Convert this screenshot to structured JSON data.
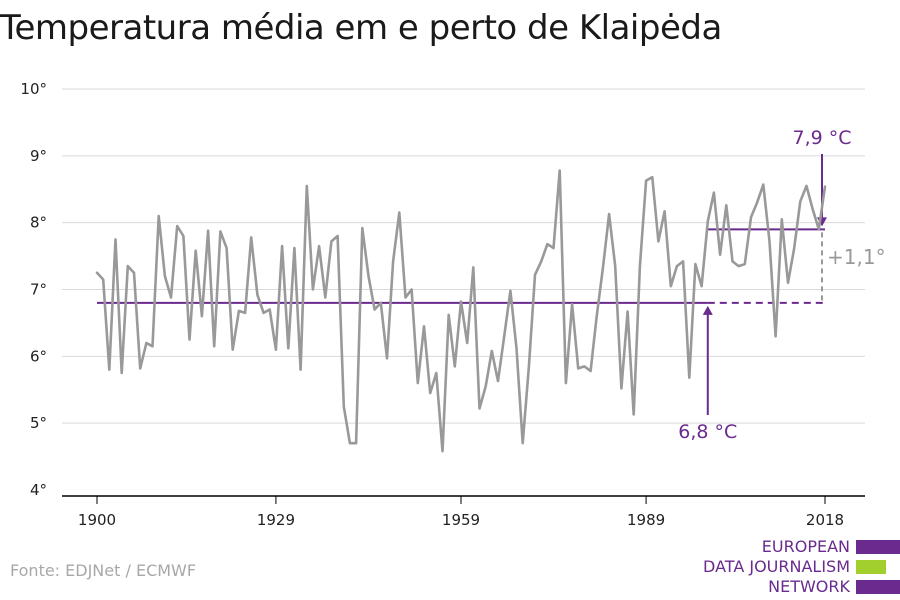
{
  "title": "Temperatura média em e perto de Klaipėda",
  "source": "Fonte: EDJNet / ECMWF",
  "logo": {
    "lines": [
      "EUROPEAN",
      "DATA JOURNALISM",
      "NETWORK"
    ],
    "bar_colors": [
      "#6a2a8e",
      "#a3cf2e",
      "#6a2a8e"
    ]
  },
  "colors": {
    "series": "#999999",
    "accent": "#6a2a8e",
    "gridline": "#d9d9d9",
    "axis": "#000000",
    "diff_label": "#999999"
  },
  "chart_data": {
    "type": "line",
    "title": "Temperatura média em e perto de Klaipėda",
    "xlabel": "",
    "ylabel": "",
    "xlim": [
      1900,
      2018
    ],
    "ylim": [
      4,
      10
    ],
    "y_ticks": [
      4,
      5,
      6,
      7,
      8,
      9,
      10
    ],
    "y_tick_labels": [
      "4°",
      "5°",
      "6°",
      "7°",
      "8°",
      "9°",
      "10°"
    ],
    "x_ticks": [
      1900,
      1929,
      1959,
      1989,
      2018
    ],
    "x_tick_labels": [
      "1900",
      "1929",
      "1959",
      "1989",
      "2018"
    ],
    "grid": true,
    "series": [
      {
        "x": [
          1900,
          1901,
          1902,
          1903,
          1904,
          1905,
          1906,
          1907,
          1908,
          1909,
          1910,
          1911,
          1912,
          1913,
          1914,
          1915,
          1916,
          1917,
          1918,
          1919,
          1920,
          1921,
          1922,
          1923,
          1924,
          1925,
          1926,
          1927,
          1928,
          1929,
          1930,
          1931,
          1932,
          1933,
          1934,
          1935,
          1936,
          1937,
          1938,
          1939,
          1940,
          1941,
          1942,
          1943,
          1944,
          1945,
          1946,
          1947,
          1948,
          1949,
          1950,
          1951,
          1952,
          1953,
          1954,
          1955,
          1956,
          1957,
          1958,
          1959,
          1960,
          1961,
          1962,
          1963,
          1964,
          1965,
          1966,
          1967,
          1968,
          1969,
          1970,
          1971,
          1972,
          1973,
          1974,
          1975,
          1976,
          1977,
          1978,
          1979,
          1980,
          1981,
          1982,
          1983,
          1984,
          1985,
          1986,
          1987,
          1988,
          1989,
          1990,
          1991,
          1992,
          1993,
          1994,
          1995,
          1996,
          1997,
          1998,
          1999,
          2000,
          2001,
          2002,
          2003,
          2004,
          2005,
          2006,
          2007,
          2008,
          2009,
          2010,
          2011,
          2012,
          2013,
          2014,
          2015,
          2016,
          2017,
          2018
        ],
        "values": [
          7.25,
          7.15,
          5.8,
          7.75,
          5.75,
          7.35,
          7.25,
          5.82,
          6.2,
          6.15,
          8.1,
          7.2,
          6.88,
          7.95,
          7.8,
          6.25,
          7.58,
          6.6,
          7.88,
          6.15,
          7.87,
          7.62,
          6.1,
          6.68,
          6.65,
          7.78,
          6.92,
          6.65,
          6.7,
          6.1,
          7.65,
          6.12,
          7.62,
          5.8,
          8.55,
          7.0,
          7.65,
          6.88,
          7.72,
          7.8,
          5.25,
          4.7,
          4.7,
          7.92,
          7.2,
          6.7,
          6.8,
          5.97,
          7.42,
          8.15,
          6.88,
          7.0,
          5.6,
          6.45,
          5.45,
          5.75,
          4.58,
          6.62,
          5.85,
          6.82,
          6.2,
          7.33,
          5.22,
          5.55,
          6.08,
          5.63,
          6.3,
          6.98,
          6.12,
          4.7,
          5.85,
          7.22,
          7.42,
          7.68,
          7.62,
          8.78,
          5.6,
          6.78,
          5.82,
          5.85,
          5.78,
          6.6,
          7.32,
          8.13,
          7.35,
          5.52,
          6.67,
          5.13,
          7.35,
          8.63,
          8.68,
          7.72,
          8.17,
          7.05,
          7.35,
          7.42,
          5.68,
          7.38,
          7.05,
          8.02,
          8.45,
          7.52,
          8.26,
          7.42,
          7.35,
          7.38,
          8.08,
          8.3,
          8.57,
          7.72,
          6.3,
          8.05,
          7.1,
          7.62,
          8.32,
          8.55,
          8.2,
          7.9,
          8.54
        ]
      }
    ],
    "annotations": {
      "baseline": {
        "value": 6.8,
        "x_start": 1900,
        "x_solid_end": 1999,
        "x_end": 2018,
        "label": "6,8 °C",
        "arrow_x": 1999
      },
      "recent": {
        "value": 7.9,
        "x_start": 1999,
        "x_end": 2018,
        "label": "7,9 °C"
      },
      "difference_label": "+1,1°"
    }
  }
}
